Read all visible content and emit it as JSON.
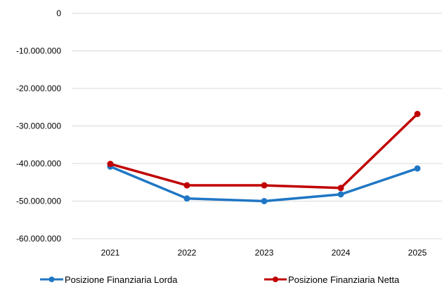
{
  "chart_data": {
    "type": "line",
    "title": "",
    "xlabel": "",
    "ylabel": "",
    "categories": [
      "2021",
      "2022",
      "2023",
      "2024",
      "2025"
    ],
    "ylim": [
      -60000000,
      0
    ],
    "y_ticks": [
      0,
      -10000000,
      -20000000,
      -30000000,
      -40000000,
      -50000000,
      -60000000
    ],
    "y_tick_labels": [
      "0",
      "-10.000.000",
      "-20.000.000",
      "-30.000.000",
      "-40.000.000",
      "-50.000.000",
      "-60.000.000"
    ],
    "grid": true,
    "legend_position": "bottom",
    "series": [
      {
        "name": "Posizione Finanziaria Lorda",
        "color": "#1f77c4",
        "values": [
          -40800000,
          -49300000,
          -50000000,
          -48200000,
          -41300000
        ]
      },
      {
        "name": "Posizione Finanziaria Netta",
        "color": "#c00000",
        "values": [
          -40100000,
          -45800000,
          -45800000,
          -46500000,
          -26800000
        ]
      }
    ]
  }
}
